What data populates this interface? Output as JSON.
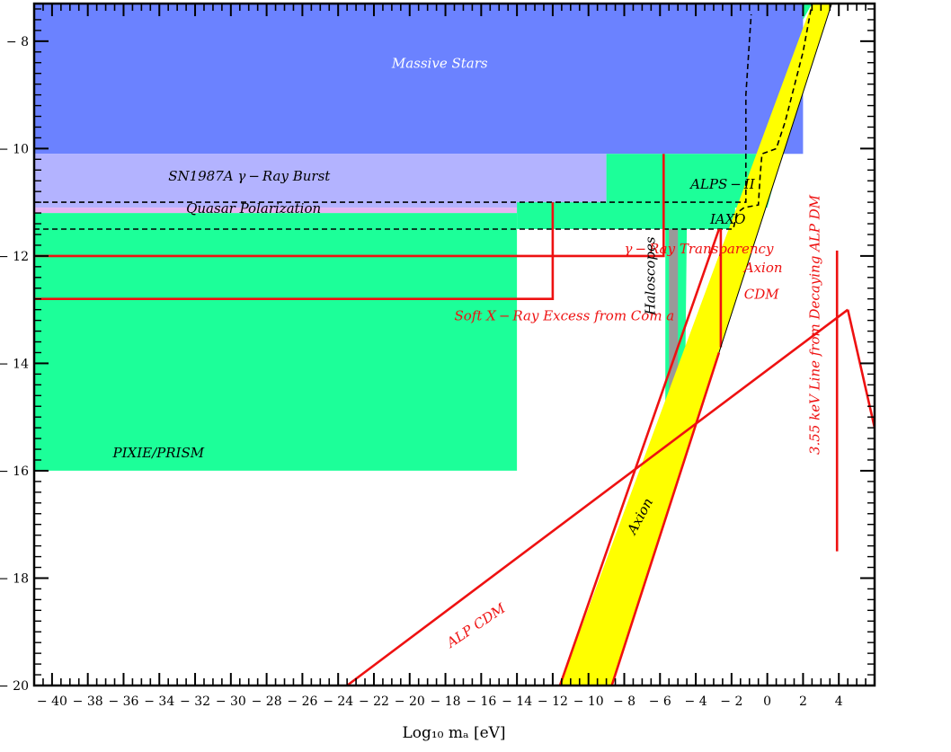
{
  "chart_data": {
    "type": "area",
    "title": "",
    "xlabel": "Log₁₀ mₐ [eV]",
    "ylabel": "",
    "xlim": [
      -41,
      6
    ],
    "ylim": [
      -20,
      -7.3
    ],
    "x_major_ticks": [
      -40,
      -38,
      -36,
      -34,
      -32,
      -30,
      -28,
      -26,
      -24,
      -22,
      -20,
      -18,
      -16,
      -14,
      -12,
      -10,
      -8,
      -6,
      -4,
      -2,
      0,
      2,
      4
    ],
    "y_major_ticks": [
      -8,
      -10,
      -12,
      -14,
      -16,
      -18,
      -20
    ],
    "x_tick_labels": [
      "− 40",
      "− 38",
      "− 36",
      "− 34",
      "− 32",
      "− 30",
      "− 28",
      "− 26",
      "− 24",
      "− 22",
      "− 20",
      "− 18",
      "− 16",
      "− 14",
      "− 12",
      "− 10",
      "− 8",
      "− 6",
      "− 4",
      "− 2",
      "0",
      "2",
      "4"
    ],
    "y_tick_labels": [
      "− 8",
      "− 10",
      "− 12",
      "− 14",
      "− 16",
      "− 18",
      "− 20"
    ],
    "colors": {
      "massive_stars": "#6b82ff",
      "sn1987a": "#b3b3ff",
      "quasar": "#e6b3f2",
      "green": "#1cff99",
      "yellow": "#ffff00",
      "haloscope_gray": "#999999",
      "red": "#ee1111",
      "white_label": "#ffffff",
      "black_label": "#000000"
    },
    "regions": [
      {
        "name": "massive-stars",
        "fill": "#6b82ff",
        "points": [
          [
            -41,
            -7.3
          ],
          [
            2,
            -7.3
          ],
          [
            2,
            -10.1
          ],
          [
            -41,
            -10.1
          ]
        ]
      },
      {
        "name": "sn1987a",
        "fill": "#b3b3ff",
        "points": [
          [
            -41,
            -10.1
          ],
          [
            -9,
            -10.1
          ],
          [
            -9,
            -11.1
          ],
          [
            -41,
            -11.1
          ]
        ]
      },
      {
        "name": "quasar",
        "fill": "#e6b3f2",
        "points": [
          [
            -41,
            -11.1
          ],
          [
            -14,
            -11.1
          ],
          [
            -14,
            -11.2
          ],
          [
            -41,
            -11.2
          ]
        ]
      },
      {
        "name": "pixie-prism",
        "fill": "#1cff99",
        "points": [
          [
            -41,
            -11.2
          ],
          [
            -14,
            -11.2
          ],
          [
            -14,
            -16
          ],
          [
            -41,
            -16
          ]
        ]
      },
      {
        "name": "green-upper-block",
        "fill": "#1cff99",
        "points": [
          [
            -9,
            -10.1
          ],
          [
            0,
            -10.1
          ],
          [
            0,
            -11.1
          ],
          [
            -9,
            -11.1
          ]
        ]
      },
      {
        "name": "green-mid-strip",
        "fill": "#1cff99",
        "points": [
          [
            -14,
            -11
          ],
          [
            -1.8,
            -11
          ],
          [
            -1.8,
            -11.5
          ],
          [
            -14,
            -11.5
          ]
        ]
      },
      {
        "name": "green-right-wedge",
        "fill": "#1cff99",
        "points": [
          [
            0,
            -10.1
          ],
          [
            0.8,
            -10.1
          ],
          [
            0,
            -11.1
          ]
        ]
      },
      {
        "name": "green-top-corner",
        "fill": "#1cff99",
        "points": [
          [
            2,
            -7.3
          ],
          [
            2.5,
            -7.3
          ],
          [
            2,
            -7.6
          ]
        ]
      },
      {
        "name": "haloscope-green",
        "fill": "#1cff99",
        "points": [
          [
            -5.7,
            -11.5
          ],
          [
            -4.5,
            -11.5
          ],
          [
            -4.6,
            -14.5
          ],
          [
            -5.3,
            -15.9
          ],
          [
            -5.7,
            -15.5
          ]
        ]
      },
      {
        "name": "haloscope-gray",
        "fill": "#999999",
        "points": [
          [
            -5.5,
            -11.5
          ],
          [
            -5.0,
            -11.5
          ],
          [
            -5.0,
            -14.6
          ],
          [
            -5.5,
            -15.3
          ]
        ]
      },
      {
        "name": "axion-band",
        "fill": "#ffff00",
        "points": [
          [
            -11.6,
            -20
          ],
          [
            -8.7,
            -20
          ],
          [
            3.6,
            -7.3
          ],
          [
            2.5,
            -7.3
          ]
        ]
      }
    ],
    "series": [
      {
        "name": "ALPS − II",
        "style": "dashed",
        "color": "#000000",
        "points": [
          [
            -41,
            -11
          ],
          [
            -1.2,
            -11
          ],
          [
            -1.2,
            -9
          ],
          [
            -0.9,
            -7.5
          ]
        ]
      },
      {
        "name": "IAXO",
        "style": "dashed",
        "color": "#000000",
        "points": [
          [
            -41,
            -11.5
          ],
          [
            -1.9,
            -11.5
          ],
          [
            -1.7,
            -11.2
          ],
          [
            -1.3,
            -11.1
          ],
          [
            -0.5,
            -11.05
          ],
          [
            -0.4,
            -10.5
          ],
          [
            -0.3,
            -10.1
          ],
          [
            0.5,
            -10.0
          ],
          [
            1,
            -9.5
          ],
          [
            2,
            -8.2
          ],
          [
            2.5,
            -7.3
          ]
        ]
      },
      {
        "name": "γ − Ray Transparency",
        "style": "solid",
        "color": "#ee1111",
        "points": [
          [
            -41,
            -12
          ],
          [
            -5.8,
            -12
          ],
          [
            -5.8,
            -10.1
          ]
        ]
      },
      {
        "name": "Soft X − Ray Excess from Coma",
        "style": "solid",
        "color": "#ee1111",
        "points": [
          [
            -41,
            -12.8
          ],
          [
            -12,
            -12.8
          ],
          [
            -12,
            -11
          ]
        ]
      },
      {
        "name": "Axion CDM",
        "style": "solid",
        "color": "#ee1111",
        "points": [
          [
            -2.6,
            -13.7
          ],
          [
            -2.6,
            -11.5
          ]
        ]
      },
      {
        "name": "ALP CDM",
        "style": "solid",
        "color": "#ee1111",
        "points": [
          [
            -23.5,
            -20
          ],
          [
            4.5,
            -13
          ]
        ]
      },
      {
        "name": "3.55 keV Line from Decaying ALP DM",
        "style": "solid",
        "color": "#ee1111",
        "points": [
          [
            3.9,
            -11.9
          ],
          [
            3.9,
            -17.5
          ]
        ]
      },
      {
        "name": "3.55-drop",
        "style": "solid",
        "color": "#ee1111",
        "points": [
          [
            4.5,
            -13
          ],
          [
            6,
            -15.2
          ]
        ]
      },
      {
        "name": "axion-band-left-edge",
        "style": "solid",
        "color": "#ee1111",
        "points": [
          [
            -11.6,
            -20
          ],
          [
            -2.7,
            -11.5
          ]
        ]
      },
      {
        "name": "axion-band-right-edge",
        "style": "solid",
        "color": "#ee1111",
        "points": [
          [
            -8.7,
            -20
          ],
          [
            -2.7,
            -13.8
          ]
        ]
      },
      {
        "name": "axion-upper-thin",
        "style": "solid",
        "color": "#000000",
        "width": 1,
        "points": [
          [
            -2.7,
            -13.8
          ],
          [
            3.6,
            -7.3
          ]
        ]
      }
    ],
    "labels": [
      {
        "key": "massive_stars",
        "text": "Massive Stars",
        "x": -21,
        "y": -8.5,
        "color": "#ffffff",
        "rotate": 0,
        "size": 20
      },
      {
        "key": "sn1987a",
        "text": "SN1987A  γ − Ray  Burst",
        "x": -33.5,
        "y": -10.6,
        "color": "#000000",
        "rotate": 0,
        "size": 15
      },
      {
        "key": "quasar",
        "text": "Quasar  Polarization",
        "x": -32.5,
        "y": -11.2,
        "color": "#000000",
        "rotate": 0,
        "size": 15
      },
      {
        "key": "alps",
        "text": "ALPS − II",
        "x": -4.3,
        "y": -10.75,
        "color": "#000000",
        "rotate": 0,
        "size": 13,
        "italic": false
      },
      {
        "key": "iaxo",
        "text": "IAXO",
        "x": -3.2,
        "y": -11.4,
        "color": "#000000",
        "rotate": 0,
        "size": 13
      },
      {
        "key": "gamma_transparency",
        "text": "γ − Ray  Transparency",
        "x": -8,
        "y": -11.95,
        "color": "#ee1111",
        "rotate": 0,
        "size": 14
      },
      {
        "key": "soft_xray",
        "text": "Soft  X − Ray  Excess  from  Com a",
        "x": -17.5,
        "y": -13.2,
        "color": "#ee1111",
        "rotate": 0,
        "size": 14
      },
      {
        "key": "axion_cdm_1",
        "text": "Axion",
        "x": -1.3,
        "y": -12.3,
        "color": "#ee1111",
        "rotate": 0,
        "size": 15
      },
      {
        "key": "axion_cdm_2",
        "text": "CDM",
        "x": -1.3,
        "y": -12.8,
        "color": "#ee1111",
        "rotate": 0,
        "size": 15
      },
      {
        "key": "haloscopes",
        "text": "Haloscopes",
        "x": -6.3,
        "y": -13.1,
        "color": "#000000",
        "rotate": -90,
        "size": 15,
        "italic": false
      },
      {
        "key": "pixie",
        "text": "PIXIE/PRISM",
        "x": -36.6,
        "y": -15.75,
        "color": "#000000",
        "rotate": 0,
        "size": 14
      },
      {
        "key": "axion",
        "text": "Axion",
        "x": -7.4,
        "y": -17.2,
        "color": "#000000",
        "rotate": -62,
        "size": 15
      },
      {
        "key": "alp_cdm",
        "text": "ALP CDM",
        "x": -17.7,
        "y": -19.3,
        "color": "#ee1111",
        "rotate": -34,
        "size": 14
      },
      {
        "key": "kev_line",
        "text": "3.55  keV  Line  from  Decaying  ALP DM",
        "x": 2.9,
        "y": -15.7,
        "color": "#ee1111",
        "rotate": -90,
        "size": 14
      }
    ]
  }
}
